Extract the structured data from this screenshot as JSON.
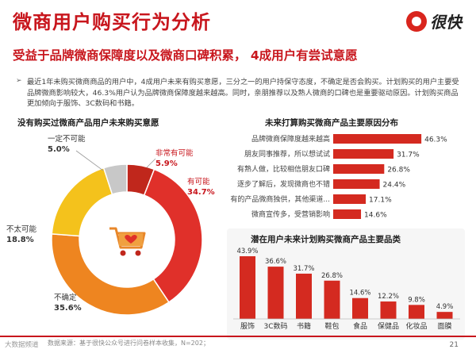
{
  "header": {
    "title": "微商用户购买行为分析",
    "subtitle": "受益于品牌微商保障度以及微商口碑积累， 4成用户有尝试意愿",
    "logo_text": "很快"
  },
  "intro": "最近1年未购买微商商品的用户中，4成用户未来有购买意愿，三分之一的用户持保守态度，不确定是否会购买。计划购买的用户主要受品牌微商影响较大，46.3%用户认为品牌微商保障度越来越高。同时，亲朋推荐以及熟人微商的口碑也是重要驱动原因。计划购买商品更加倾向于服饰、3C数码和书籍。",
  "colors": {
    "accent": "#c8161d",
    "bar": "#d42a20",
    "donut_dark": "#c0271c",
    "donut_red": "#e0302a",
    "donut_orange": "#ee8520",
    "donut_yellow": "#f4c21c",
    "donut_grey": "#c8c8c8"
  },
  "footer": {
    "note": "数据来源：基于很快公众号进行问卷样本收集，N=202；",
    "page": "21",
    "watermark": "大数据频道"
  },
  "chart_data": [
    {
      "type": "pie",
      "style": "donut",
      "title": "没有购买过微商产品用户未来购买意愿",
      "center_icon": "shopping-cart-heart-icon",
      "slices": [
        {
          "label": "非常有可能",
          "value": 5.9,
          "pct": "5.9%"
        },
        {
          "label": "有可能",
          "value": 34.7,
          "pct": "34.7%"
        },
        {
          "label": "不确定",
          "value": 35.6,
          "pct": "35.6%"
        },
        {
          "label": "不太可能",
          "value": 18.8,
          "pct": "18.8%"
        },
        {
          "label": "一定不可能",
          "value": 5.0,
          "pct": "5.0%"
        }
      ]
    },
    {
      "type": "bar",
      "orientation": "horizontal",
      "title": "未来打算购买微商产品主要原因分布",
      "categories": [
        "品牌微商保障度越来越高",
        "朋友同事推荐，所以想试试",
        "有熟人做，比较相信朋友口碑",
        "逐步了解后，发现微商也不错",
        "有的产品微商独供，其他渠道...",
        "微商宣传多，受营销影响"
      ],
      "values": [
        46.3,
        31.7,
        26.8,
        24.4,
        17.1,
        14.6
      ],
      "labels": [
        "46.3%",
        "31.7%",
        "26.8%",
        "24.4%",
        "17.1%",
        "14.6%"
      ],
      "xlim": [
        0,
        50
      ]
    },
    {
      "type": "bar",
      "orientation": "vertical",
      "title": "潜在用户未来计划购买微商产品主要品类",
      "categories": [
        "服饰",
        "3C数码",
        "书籍",
        "鞋包",
        "食品",
        "保健品",
        "化妆品",
        "面膜"
      ],
      "values": [
        43.9,
        36.6,
        31.7,
        26.8,
        14.6,
        12.2,
        9.8,
        4.9
      ],
      "labels": [
        "43.9%",
        "36.6%",
        "31.7%",
        "26.8%",
        "14.6%",
        "12.2%",
        "9.8%",
        "4.9%"
      ],
      "ylim": [
        0,
        50
      ]
    }
  ]
}
